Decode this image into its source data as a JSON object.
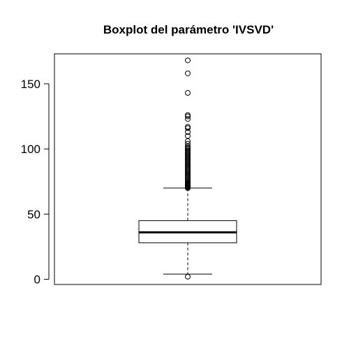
{
  "chart_data": {
    "type": "boxplot",
    "title": "Boxplot del parámetro 'IVSVD'",
    "xlabel": "",
    "ylabel": "",
    "ylim": [
      -4,
      173
    ],
    "yticks": [
      0,
      50,
      100,
      150
    ],
    "grid": false,
    "legend": "none",
    "box": {
      "lower_whisker": 4,
      "q1": 28,
      "median": 36,
      "q3": 45,
      "upper_whisker": 70
    },
    "outliers": [
      2,
      70,
      70.5,
      71,
      71.5,
      72,
      72.5,
      73,
      73.5,
      74,
      75,
      76,
      77,
      78,
      79,
      80,
      81,
      82,
      83,
      84,
      85,
      86,
      87,
      88,
      89,
      90,
      91,
      92,
      93,
      94,
      95,
      96,
      97,
      98,
      99,
      100,
      101,
      102,
      104,
      106,
      110,
      113,
      116,
      117,
      123,
      125,
      126,
      143,
      158,
      168
    ]
  }
}
